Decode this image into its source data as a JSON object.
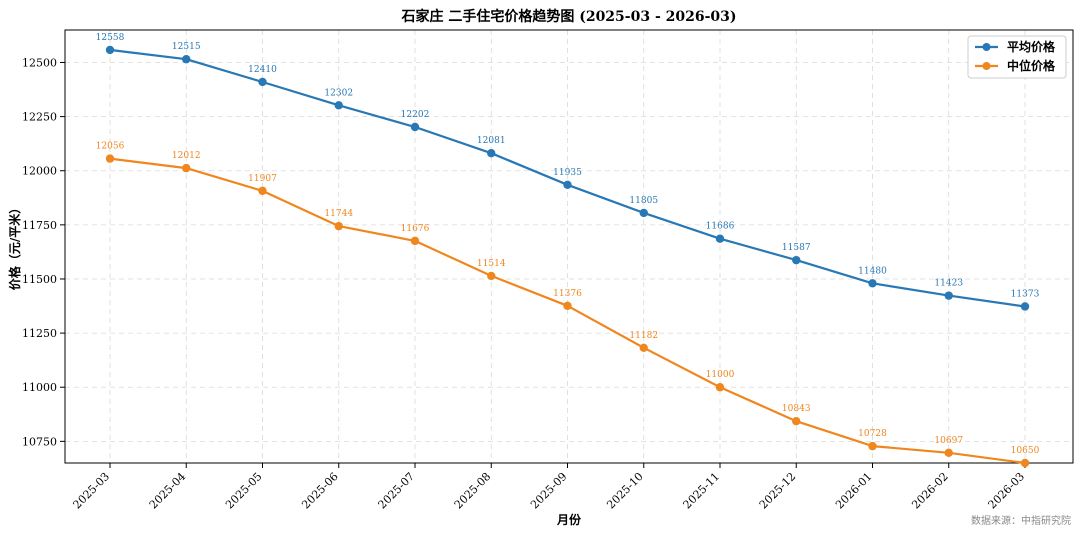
{
  "chart_data": {
    "type": "line",
    "title": "石家庄 二手住宅价格趋势图 (2025-03 - 2026-03)",
    "xlabel": "月份",
    "ylabel": "价格（元/平米）",
    "categories": [
      "2025-03",
      "2025-04",
      "2025-05",
      "2025-06",
      "2025-07",
      "2025-08",
      "2025-09",
      "2025-10",
      "2025-11",
      "2025-12",
      "2026-01",
      "2026-02",
      "2026-03"
    ],
    "ylim": [
      10650,
      12650
    ],
    "yticks": [
      10750,
      11000,
      11250,
      11500,
      11750,
      12000,
      12250,
      12500
    ],
    "grid": true,
    "legend_position": "top-right",
    "series": [
      {
        "name": "平均价格",
        "color": "#2878b5",
        "values": [
          12558,
          12515,
          12410,
          12302,
          12202,
          12081,
          11935,
          11805,
          11686,
          11587,
          11480,
          11423,
          11373
        ]
      },
      {
        "name": "中位价格",
        "color": "#f0861e",
        "values": [
          12056,
          12012,
          11907,
          11744,
          11676,
          11514,
          11376,
          11182,
          11000,
          10843,
          10728,
          10697,
          10650
        ]
      }
    ],
    "source": "数据来源：中指研究院"
  }
}
